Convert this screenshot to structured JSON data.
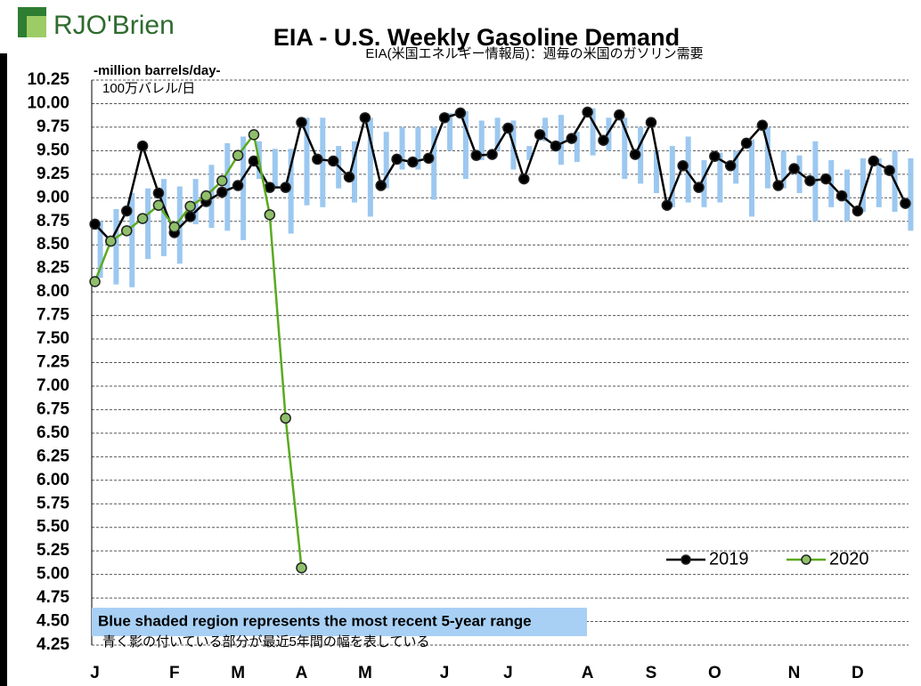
{
  "logo": "RJO'Brien",
  "chart_data": {
    "type": "line",
    "title": "EIA - U.S. Weekly Gasoline Demand",
    "subtitle": "EIA(米国エネルギー情報局)：週毎の米国のガソリン需要",
    "y_label": "-million barrels/day-",
    "y_label_ja": "100万バレル/日",
    "note": "Blue shaded region represents the most recent 5-year range",
    "note_ja": "青く影の付いている部分が最近5年間の幅を表している",
    "x": [
      1,
      2,
      3,
      4,
      5,
      6,
      7,
      8,
      9,
      10,
      11,
      12,
      13,
      14,
      15,
      16,
      17,
      18,
      19,
      20,
      21,
      22,
      23,
      24,
      25,
      26,
      27,
      28,
      29,
      30,
      31,
      32,
      33,
      34,
      35,
      36,
      37,
      38,
      39,
      40,
      41,
      42,
      43,
      44,
      45,
      46,
      47,
      48,
      49,
      50,
      51,
      52
    ],
    "xlim": [
      0.8,
      52.2
    ],
    "xticks": [
      {
        "value": 1,
        "label": "J"
      },
      {
        "value": 6,
        "label": "F"
      },
      {
        "value": 10,
        "label": "M"
      },
      {
        "value": 14,
        "label": "A"
      },
      {
        "value": 18,
        "label": "M"
      },
      {
        "value": 23,
        "label": "J"
      },
      {
        "value": 27,
        "label": "J"
      },
      {
        "value": 32,
        "label": "A"
      },
      {
        "value": 36,
        "label": "S"
      },
      {
        "value": 40,
        "label": "O"
      },
      {
        "value": 45,
        "label": "N"
      },
      {
        "value": 49,
        "label": "D"
      }
    ],
    "ylim": [
      4.25,
      10.25
    ],
    "yticks": [
      10.25,
      {
        "value": 10,
        "label": "10.00"
      },
      9.75,
      {
        "value": 9.5,
        "label": "9.50"
      },
      9.25,
      {
        "value": 9,
        "label": "9.00"
      },
      8.75,
      {
        "value": 8.5,
        "label": "8.50"
      },
      8.25,
      {
        "value": 8,
        "label": "8.00"
      },
      7.75,
      {
        "value": 7.5,
        "label": "7.50"
      },
      7.25,
      {
        "value": 7,
        "label": "7.00"
      },
      6.75,
      {
        "value": 6.5,
        "label": "6.50"
      },
      6.25,
      {
        "value": 6,
        "label": "6.00"
      },
      5.75,
      {
        "value": 5.5,
        "label": "5.50"
      },
      5.25,
      {
        "value": 5,
        "label": "5.00"
      },
      4.75,
      {
        "value": 4.5,
        "label": "4.50"
      },
      4.25
    ],
    "grid": true,
    "legend": "lower right",
    "range": {
      "color": "#9cc8f0",
      "low": [
        8.15,
        8.08,
        8.05,
        8.35,
        8.38,
        8.3,
        8.72,
        8.68,
        8.65,
        8.55,
        9.2,
        9.1,
        8.62,
        8.92,
        8.9,
        9.1,
        8.95,
        8.8,
        9.1,
        9.3,
        9.3,
        8.98,
        9.5,
        9.2,
        9.4,
        9.5,
        9.3,
        9.4,
        9.6,
        9.35,
        9.38,
        9.45,
        9.5,
        9.2,
        9.15,
        9.05,
        8.9,
        8.95,
        8.9,
        8.95,
        9.15,
        8.8,
        9.1,
        9.1,
        9.05,
        8.75,
        8.9,
        8.75,
        8.85,
        8.9,
        8.85,
        8.65
      ],
      "high": [
        8.75,
        8.88,
        9.05,
        9.1,
        9.2,
        9.12,
        9.2,
        9.35,
        9.58,
        9.65,
        9.6,
        9.52,
        9.52,
        9.85,
        9.85,
        9.55,
        9.6,
        9.85,
        9.7,
        9.75,
        9.75,
        9.75,
        9.9,
        9.92,
        9.82,
        9.85,
        9.82,
        9.55,
        9.85,
        9.88,
        9.7,
        9.95,
        9.85,
        9.85,
        9.75,
        9.5,
        9.55,
        9.65,
        9.4,
        9.48,
        9.5,
        9.62,
        9.75,
        9.5,
        9.45,
        9.6,
        9.4,
        9.3,
        9.42,
        9.42,
        9.5,
        9.42
      ]
    },
    "series": [
      {
        "name": "2019",
        "color": "#000000",
        "marker": "#000000",
        "values": [
          8.72,
          8.54,
          8.86,
          9.55,
          9.05,
          8.63,
          8.8,
          8.96,
          9.06,
          9.13,
          9.39,
          9.11,
          9.11,
          9.8,
          9.41,
          9.39,
          9.22,
          9.85,
          9.13,
          9.41,
          9.38,
          9.42,
          9.85,
          9.9,
          9.45,
          9.46,
          9.74,
          9.2,
          9.67,
          9.55,
          9.63,
          9.91,
          9.61,
          9.88,
          9.46,
          9.8,
          8.92,
          9.34,
          9.11,
          9.44,
          9.34,
          9.58,
          9.77,
          9.13,
          9.31,
          9.18,
          9.2,
          9.02,
          8.86,
          9.39,
          9.29,
          8.94
        ]
      },
      {
        "name": "2020",
        "color": "#5aaa1e",
        "marker": "#8fbf6a",
        "values": [
          8.11,
          8.54,
          8.65,
          8.78,
          8.92,
          8.69,
          8.91,
          9.02,
          9.18,
          9.45,
          9.67,
          8.82,
          6.66,
          5.07,
          null,
          null,
          null,
          null,
          null,
          null,
          null,
          null,
          null,
          null,
          null,
          null,
          null,
          null,
          null,
          null,
          null,
          null,
          null,
          null,
          null,
          null,
          null,
          null,
          null,
          null,
          null,
          null,
          null,
          null,
          null,
          null,
          null,
          null,
          null,
          null,
          null,
          null
        ]
      }
    ]
  }
}
